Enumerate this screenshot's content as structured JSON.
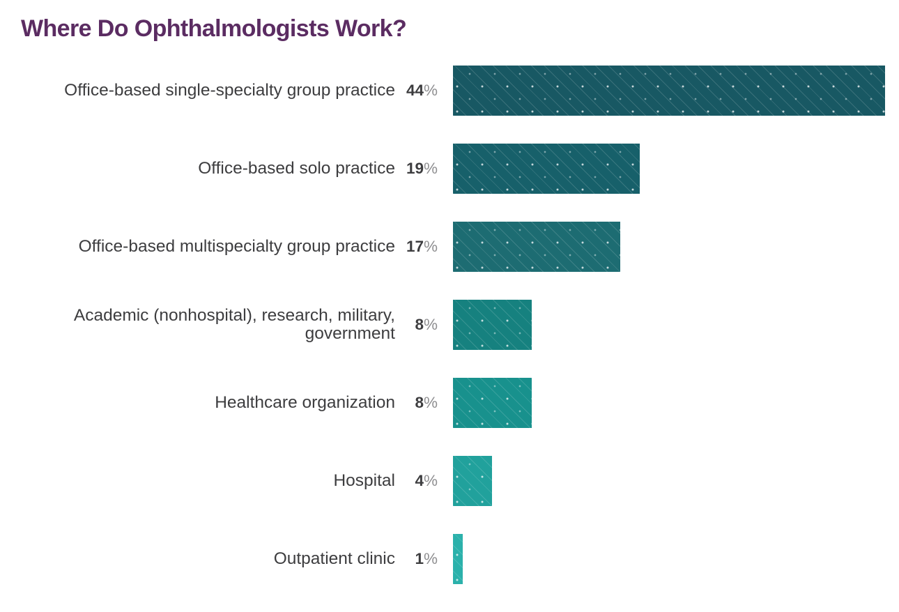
{
  "title": "Where Do Ophthalmologists Work?",
  "colors": {
    "background": "#ffffff",
    "title": "#5b2c62",
    "category_label": "#3d3d3f",
    "percent_digits": "#3d3d3f",
    "percent_sign": "#8e8e90"
  },
  "chart_data": {
    "type": "bar",
    "orientation": "horizontal",
    "title": "Where Do Ophthalmologists Work?",
    "categories": [
      "Office-based single-specialty group practice",
      "Office-based solo practice",
      "Office-based multispecialty group practice",
      "Academic (nonhospital), research, military, government",
      "Healthcare organization",
      "Hospital",
      "Outpatient clinic"
    ],
    "values": [
      44,
      19,
      17,
      8,
      8,
      4,
      1
    ],
    "value_labels": [
      "44%",
      "19%",
      "17%",
      "8%",
      "8%",
      "4%",
      "1%"
    ],
    "unit": "%",
    "bar_colors": [
      "#185863",
      "#17606a",
      "#1d6c72",
      "#16817f",
      "#18918d",
      "#21a19c",
      "#2bb1ab"
    ],
    "xlim": [
      0,
      44
    ],
    "xlabel": "",
    "ylabel": "",
    "grid": false,
    "legend_position": "none",
    "bar_pattern": "diagonal-dotted-lines"
  }
}
